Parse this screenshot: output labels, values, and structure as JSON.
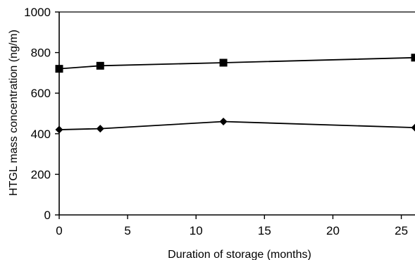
{
  "chart_data": {
    "type": "line",
    "title": "",
    "xlabel": "Duration of storage (months)",
    "ylabel": "HTGL mass concentration  (ng/m)",
    "xlim": [
      0,
      26
    ],
    "ylim": [
      0,
      1000
    ],
    "xticks": [
      0,
      5,
      10,
      15,
      20,
      25
    ],
    "yticks": [
      0,
      200,
      400,
      600,
      800,
      1000
    ],
    "xtick_labels": [
      "0",
      "5",
      "10",
      "15",
      "20",
      "25"
    ],
    "ytick_labels": [
      "0",
      "200",
      "400",
      "600",
      "800",
      "1000"
    ],
    "grid": false,
    "legend": "none",
    "series": [
      {
        "marker": "square",
        "color": "#000000",
        "x": [
          0,
          3,
          12,
          26
        ],
        "y": [
          720,
          735,
          750,
          775
        ]
      },
      {
        "marker": "diamond",
        "color": "#000000",
        "x": [
          0,
          3,
          12,
          26
        ],
        "y": [
          420,
          425,
          460,
          430
        ]
      }
    ]
  }
}
